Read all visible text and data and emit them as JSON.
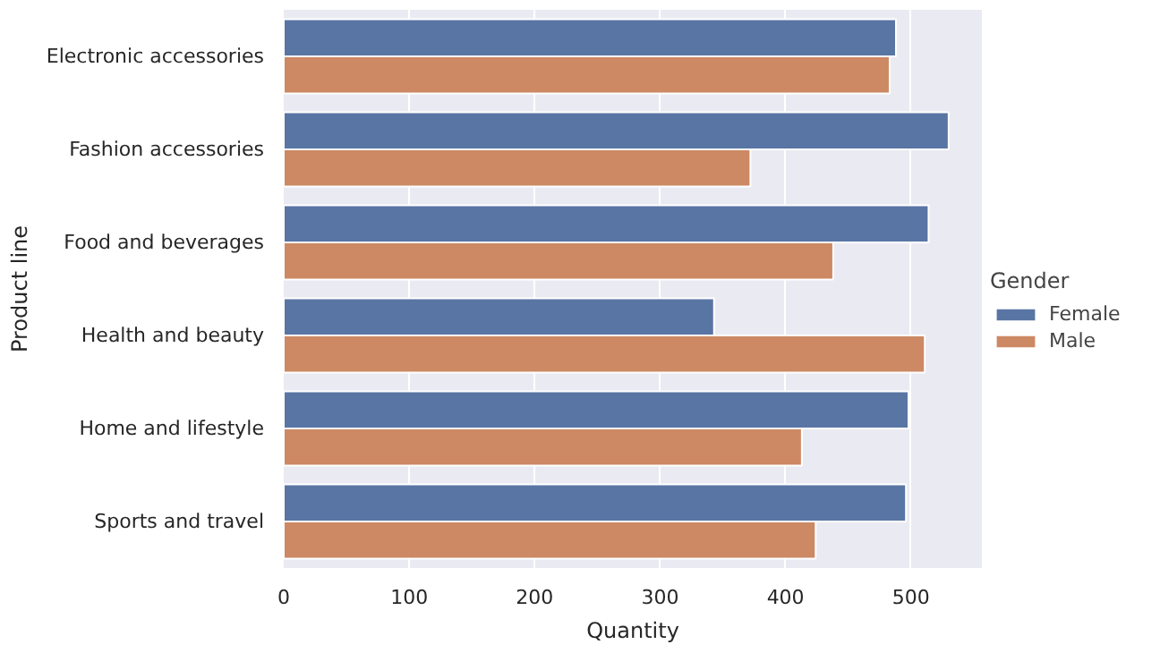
{
  "chart_data": {
    "type": "bar",
    "orientation": "horizontal",
    "xlabel": "Quantity",
    "ylabel": "Product line",
    "legend_title": "Gender",
    "categories": [
      "Electronic accessories",
      "Fashion accessories",
      "Food and beverages",
      "Health and beauty",
      "Home and lifestyle",
      "Sports and travel"
    ],
    "series": [
      {
        "name": "Female",
        "color": "#5975a4",
        "values": [
          488,
          530,
          514,
          343,
          498,
          496
        ]
      },
      {
        "name": "Male",
        "color": "#cc8963",
        "values": [
          483,
          372,
          438,
          511,
          413,
          424
        ]
      }
    ],
    "xlim": [
      0,
      556.5
    ],
    "xticks": [
      0,
      100,
      200,
      300,
      400,
      500
    ],
    "grid": "x",
    "legend": "right"
  }
}
